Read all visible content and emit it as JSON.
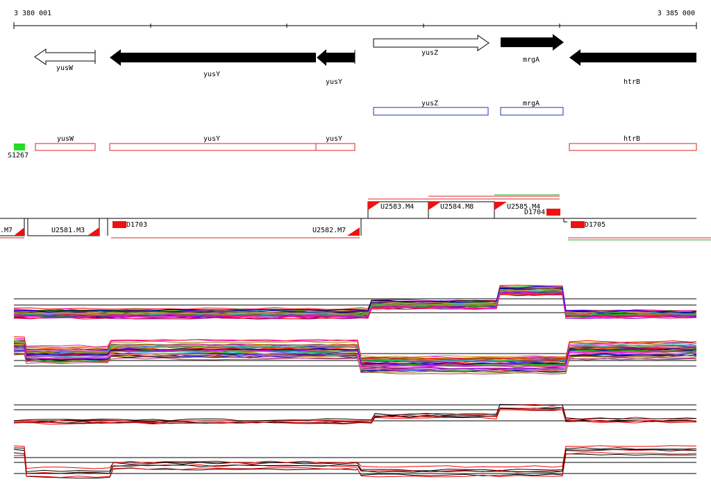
{
  "ruler": {
    "start": "3 380 001",
    "end": "3 385 000"
  },
  "genes": [
    "yusW",
    "yusY",
    "yusY",
    "yusZ",
    "mrgA",
    "htrB"
  ],
  "cds": [
    "yusZ",
    "mrgA"
  ],
  "features": [
    "S1267",
    "yusW",
    "yusY",
    "yusY",
    "htrB"
  ],
  "segments": [
    ".M7",
    "U2581.M3",
    "D1703",
    "U2582.M7",
    "U2583.M4",
    "U2584.M8",
    "U2585.M4",
    "D1704",
    "D1705"
  ]
}
